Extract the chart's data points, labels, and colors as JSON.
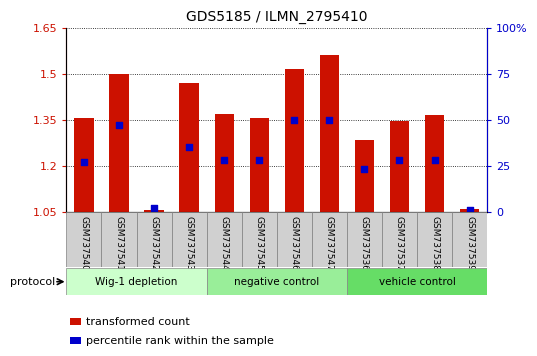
{
  "title": "GDS5185 / ILMN_2795410",
  "samples": [
    "GSM737540",
    "GSM737541",
    "GSM737542",
    "GSM737543",
    "GSM737544",
    "GSM737545",
    "GSM737546",
    "GSM737547",
    "GSM737536",
    "GSM737537",
    "GSM737538",
    "GSM737539"
  ],
  "transformed_count": [
    1.355,
    1.5,
    1.055,
    1.47,
    1.37,
    1.355,
    1.515,
    1.56,
    1.285,
    1.345,
    1.365,
    1.06
  ],
  "percentile_rank_pct": [
    27,
    47,
    2,
    35,
    28,
    28,
    50,
    50,
    23,
    28,
    28,
    1
  ],
  "groups": [
    {
      "label": "Wig-1 depletion",
      "start": 0,
      "end": 3,
      "color": "#ccffcc"
    },
    {
      "label": "negative control",
      "start": 4,
      "end": 7,
      "color": "#99ee99"
    },
    {
      "label": "vehicle control",
      "start": 8,
      "end": 11,
      "color": "#66dd66"
    }
  ],
  "ylim_left": [
    1.05,
    1.65
  ],
  "yticks_left": [
    1.05,
    1.2,
    1.35,
    1.5,
    1.65
  ],
  "ytick_labels_left": [
    "1.05",
    "1.2",
    "1.35",
    "1.5",
    "1.65"
  ],
  "ylim_right": [
    0,
    100
  ],
  "yticks_right": [
    0,
    25,
    50,
    75,
    100
  ],
  "ytick_labels_right": [
    "0",
    "25",
    "50",
    "75",
    "100%"
  ],
  "bar_color": "#cc1100",
  "dot_color": "#0000cc",
  "bar_width": 0.55,
  "sample_box_color": "#d0d0d0",
  "legend_items": [
    {
      "label": "transformed count",
      "color": "#cc1100"
    },
    {
      "label": "percentile rank within the sample",
      "color": "#0000cc"
    }
  ]
}
